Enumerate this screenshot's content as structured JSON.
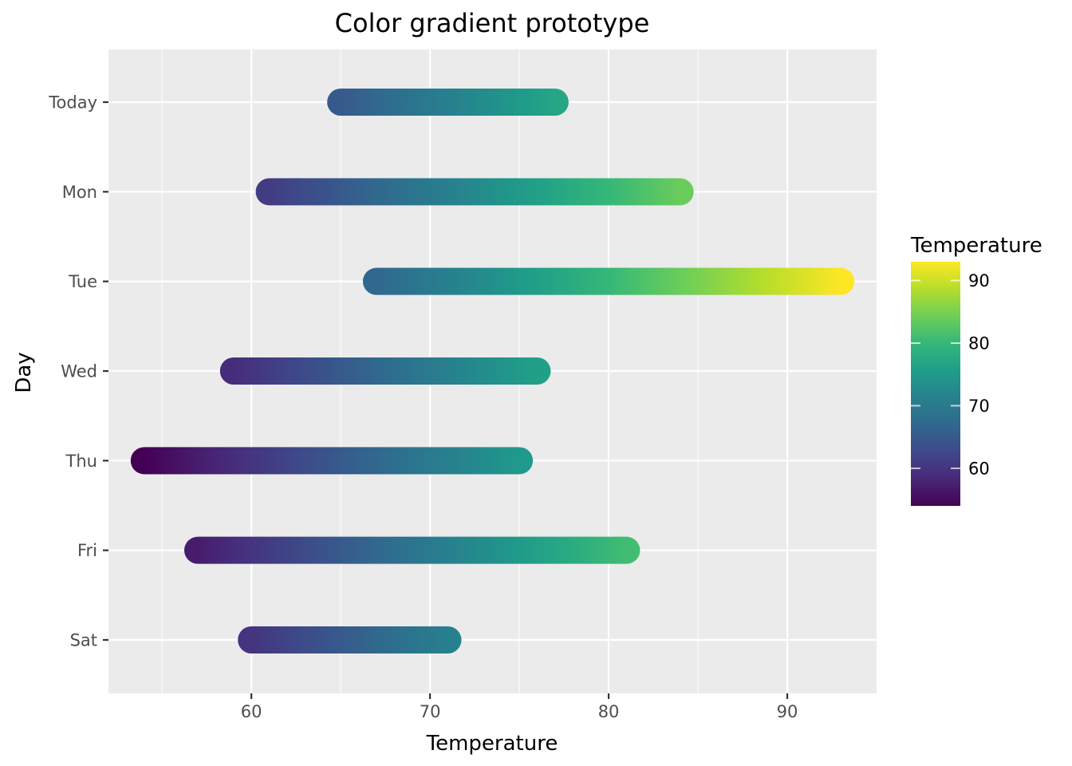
{
  "chart_data": {
    "type": "bar",
    "title": "Color gradient prototype",
    "xlabel": "Temperature",
    "ylabel": "Day",
    "xlim": [
      52,
      95
    ],
    "xticks": [
      60,
      70,
      80,
      90
    ],
    "grid": true,
    "categories": [
      "Today",
      "Mon",
      "Tue",
      "Wed",
      "Thu",
      "Fri",
      "Sat"
    ],
    "series": [
      {
        "low": [
          65,
          61,
          67,
          59,
          54,
          57,
          60
        ],
        "high": [
          77,
          84,
          93,
          76,
          75,
          81,
          71
        ]
      }
    ],
    "legend": {
      "title": "Temperature",
      "position": "right",
      "min": 54,
      "max": 93,
      "ticks": [
        60,
        70,
        80,
        90
      ],
      "palette": "viridis"
    },
    "colors": {
      "panel_bg": "#ebebeb",
      "grid": "#ffffff",
      "viridis": [
        "#440154",
        "#482878",
        "#3e4989",
        "#31688e",
        "#26828e",
        "#1f9e89",
        "#35b779",
        "#6ece58",
        "#b5de2b",
        "#fde725"
      ]
    }
  }
}
